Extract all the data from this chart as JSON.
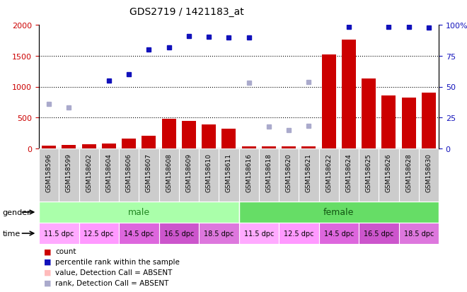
{
  "title": "GDS2719 / 1421183_at",
  "samples": [
    "GSM158596",
    "GSM158599",
    "GSM158602",
    "GSM158604",
    "GSM158606",
    "GSM158607",
    "GSM158608",
    "GSM158609",
    "GSM158610",
    "GSM158611",
    "GSM158616",
    "GSM158618",
    "GSM158620",
    "GSM158621",
    "GSM158622",
    "GSM158624",
    "GSM158625",
    "GSM158626",
    "GSM158628",
    "GSM158630"
  ],
  "red_bars": [
    50,
    60,
    65,
    75,
    160,
    210,
    480,
    445,
    390,
    320,
    30,
    30,
    30,
    30,
    1520,
    1760,
    1130,
    860,
    820,
    900
  ],
  "blue_dots": [
    null,
    null,
    null,
    1100,
    1200,
    1600,
    1640,
    1820,
    1810,
    1790,
    1790,
    null,
    null,
    null,
    null,
    1960,
    null,
    1960,
    1960,
    1950
  ],
  "light_blue_dots": [
    720,
    660,
    null,
    null,
    null,
    null,
    null,
    null,
    null,
    null,
    1060,
    null,
    null,
    1080,
    null,
    null,
    null,
    null,
    null,
    null
  ],
  "absent_blue": [
    null,
    null,
    null,
    null,
    null,
    null,
    null,
    null,
    null,
    null,
    null,
    360,
    300,
    370,
    null,
    null,
    null,
    null,
    null,
    null
  ],
  "ylim_left": [
    0,
    2000
  ],
  "ylim_right": [
    0,
    100
  ],
  "yticks_left": [
    0,
    500,
    1000,
    1500,
    2000
  ],
  "yticks_right": [
    0,
    25,
    50,
    75,
    100
  ],
  "bar_color": "#cc0000",
  "dot_color": "#1111bb",
  "light_dot_color": "#aaaacc",
  "pink_absent_color": "#ffbbbb",
  "time_labels": [
    "11.5 dpc",
    "12.5 dpc",
    "14.5 dpc",
    "16.5 dpc",
    "18.5 dpc",
    "11.5 dpc",
    "12.5 dpc",
    "14.5 dpc",
    "16.5 dpc",
    "18.5 dpc"
  ],
  "time_colors": [
    "#ffaaff",
    "#ff99ff",
    "#dd66dd",
    "#cc55cc",
    "#dd77dd",
    "#ffaaff",
    "#ff99ff",
    "#dd66dd",
    "#cc55cc",
    "#dd77dd"
  ],
  "male_color": "#aaffaa",
  "female_color": "#66dd66",
  "ylabel_left_color": "#cc0000",
  "ylabel_right_color": "#1111bb"
}
